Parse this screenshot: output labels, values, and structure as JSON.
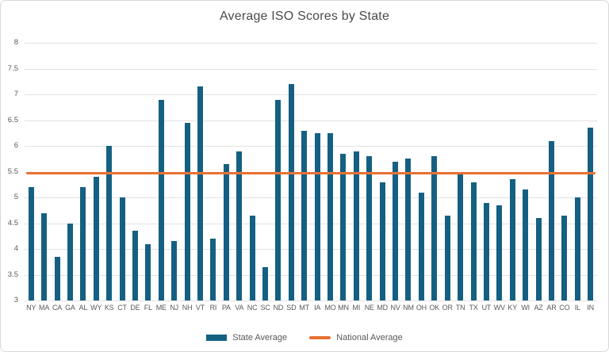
{
  "chart_data": {
    "type": "bar",
    "title": "Average ISO Scores by State",
    "categories": [
      "NY",
      "MA",
      "CA",
      "GA",
      "AL",
      "WY",
      "KS",
      "CT",
      "DE",
      "FL",
      "ME",
      "NJ",
      "NH",
      "VT",
      "RI",
      "PA",
      "VA",
      "NC",
      "SC",
      "ND",
      "SD",
      "MT",
      "IA",
      "MO",
      "MN",
      "MI",
      "NE",
      "MD",
      "NV",
      "NM",
      "OH",
      "OK",
      "OR",
      "TN",
      "TX",
      "UT",
      "WV",
      "KY",
      "WI",
      "AZ",
      "AR",
      "CO",
      "IL",
      "IN"
    ],
    "series": [
      {
        "name": "State Average",
        "values": [
          5.2,
          4.7,
          3.85,
          4.5,
          5.2,
          5.4,
          6.0,
          5.0,
          4.35,
          4.1,
          6.9,
          4.15,
          6.45,
          7.15,
          4.2,
          5.65,
          5.9,
          4.65,
          3.65,
          6.9,
          7.2,
          6.3,
          6.25,
          6.25,
          5.85,
          5.9,
          5.8,
          5.3,
          5.7,
          5.75,
          5.1,
          5.8,
          4.65,
          5.45,
          5.3,
          4.9,
          4.85,
          5.35,
          5.15,
          4.6,
          6.1,
          4.65,
          5.0,
          6.35
        ]
      }
    ],
    "reference_line": {
      "name": "National Average",
      "value": 5.47
    },
    "xlabel": "",
    "ylabel": "",
    "ylim": [
      3,
      8
    ],
    "ytick_step": 0.5,
    "yticks": [
      "8",
      "7.5",
      "7",
      "6.5",
      "6",
      "5.5",
      "5",
      "4.5",
      "4",
      "3.5",
      "3"
    ],
    "grid": true,
    "legend_position": "bottom",
    "colors": {
      "bar": "#156082",
      "line": "#E97132",
      "grid": "#E2E2E2",
      "text": "#595959",
      "title": "#4A4A4A",
      "border": "#D9D9D9"
    }
  },
  "legend": {
    "items": [
      {
        "label": "State Average",
        "swatch": "bar"
      },
      {
        "label": "National Average",
        "swatch": "line"
      }
    ]
  }
}
